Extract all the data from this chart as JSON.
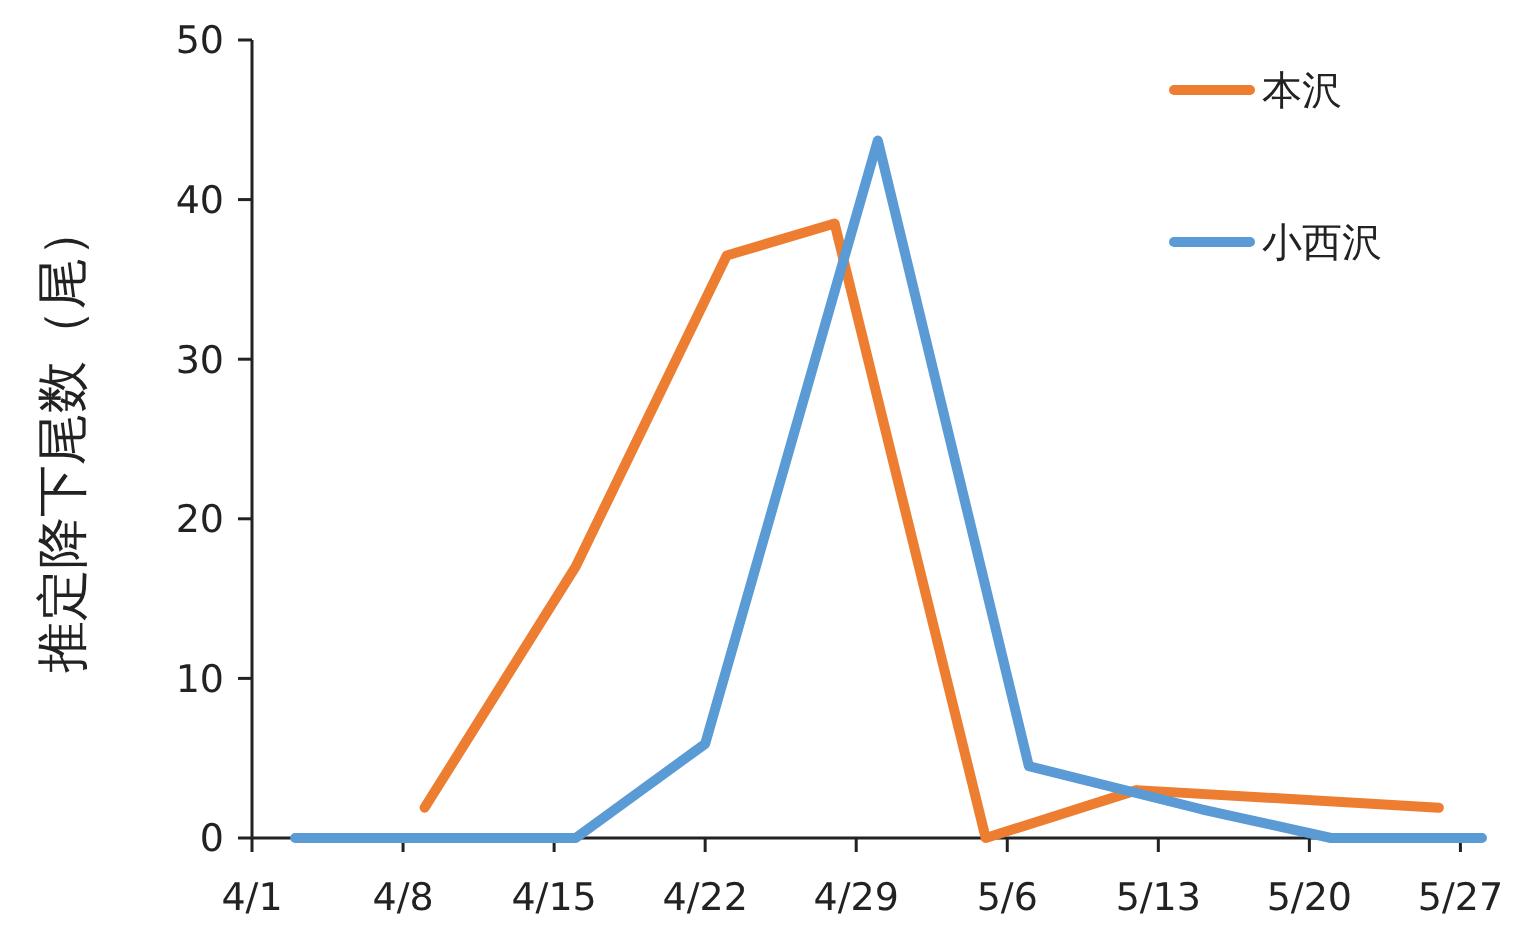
{
  "chart_data": {
    "type": "line",
    "ylabel": "推定降下尾数（尾）",
    "xlim": [
      "--04-01",
      "--05-28"
    ],
    "xticks": [
      {
        "value": "--04-01",
        "label": "4/1"
      },
      {
        "value": "--04-08",
        "label": "4/8"
      },
      {
        "value": "--04-15",
        "label": "4/15"
      },
      {
        "value": "--04-22",
        "label": "4/22"
      },
      {
        "value": "--04-29",
        "label": "4/29"
      },
      {
        "value": "--05-06",
        "label": "5/6"
      },
      {
        "value": "--05-13",
        "label": "5/13"
      },
      {
        "value": "--05-20",
        "label": "5/20"
      },
      {
        "value": "--05-27",
        "label": "5/27"
      }
    ],
    "ylim": [
      0,
      50
    ],
    "yticks": [
      0,
      10,
      20,
      30,
      40,
      50
    ],
    "grid": false,
    "legend": "top right",
    "marker": "none",
    "line_style": "solid",
    "series": [
      {
        "name": "本沢",
        "color": "#ed7d31",
        "x": [
          "--04-09",
          "--04-16",
          "--04-23",
          "--04-28",
          "--05-05",
          "--05-12",
          "--05-26"
        ],
        "values": [
          1.9,
          17,
          36.5,
          38.5,
          0,
          3,
          1.9
        ]
      },
      {
        "name": "小西沢",
        "color": "#5b9bd5",
        "x": [
          "--04-03",
          "--04-16",
          "--04-22",
          "--04-30",
          "--05-07",
          "--05-15",
          "--05-21",
          "--05-28"
        ],
        "values": [
          0,
          0,
          5.9,
          43.7,
          4.5,
          1.8,
          0,
          0
        ]
      }
    ]
  }
}
